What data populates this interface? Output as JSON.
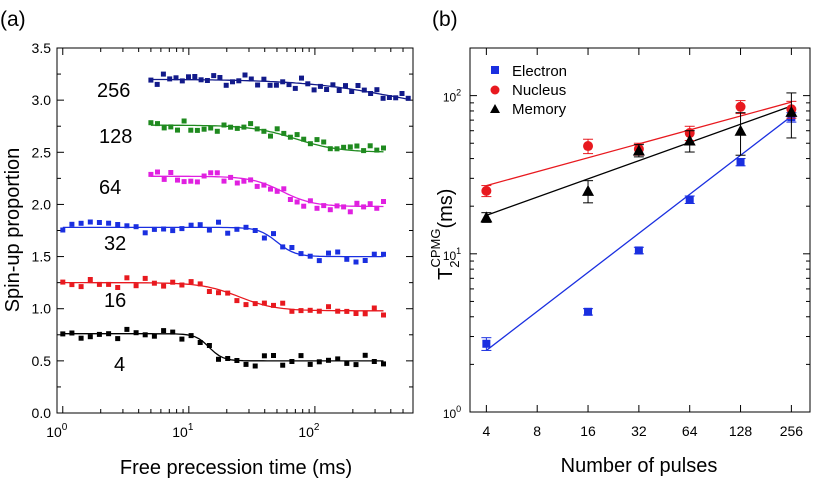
{
  "chart_data": [
    {
      "panel": "(a)",
      "type": "scatter",
      "xlabel": "Free precession time (ms)",
      "ylabel": "Spin-up proportion",
      "xscale": "log",
      "xlim": [
        0.9,
        600
      ],
      "ylim": [
        0.0,
        3.5
      ],
      "x_ticks": [
        {
          "base": "10",
          "exp": "0",
          "v": 1
        },
        {
          "base": "10",
          "exp": "1",
          "v": 10
        },
        {
          "base": "10",
          "exp": "2",
          "v": 100
        }
      ],
      "y_ticks": [
        "0.0",
        "0.5",
        "1.0",
        "1.5",
        "2.0",
        "2.5",
        "3.0",
        "3.5"
      ],
      "series": [
        {
          "name": "4",
          "color": "#000000",
          "x0": 1.0,
          "x1": 350,
          "n": 36,
          "base": 0.5,
          "amp": 0.26,
          "tau": 14.5,
          "steep": 8
        },
        {
          "name": "16",
          "color": "#e8191f",
          "x0": 1.0,
          "x1": 350,
          "n": 36,
          "base": 0.98,
          "amp": 0.27,
          "tau": 25,
          "steep": 3
        },
        {
          "name": "32",
          "color": "#1a2fe0",
          "x0": 1.0,
          "x1": 350,
          "n": 36,
          "base": 1.5,
          "amp": 0.28,
          "tau": 50,
          "steep": 6
        },
        {
          "name": "64",
          "color": "#e020e0",
          "x0": 5.0,
          "x1": 350,
          "n": 36,
          "base": 1.98,
          "amp": 0.29,
          "tau": 55,
          "steep": 3.5
        },
        {
          "name": "128",
          "color": "#1f8a1f",
          "x0": 5.0,
          "x1": 350,
          "n": 36,
          "base": 2.5,
          "amp": 0.26,
          "tau": 70,
          "steep": 2.5
        },
        {
          "name": "256",
          "color": "#121a8a",
          "x0": 5.0,
          "x1": 550,
          "n": 42,
          "base": 2.88,
          "amp": 0.32,
          "tau": 400,
          "steep": 1.2
        }
      ]
    },
    {
      "panel": "(b)",
      "type": "scatter",
      "xlabel": "Number of pulses",
      "ylabel_main": "T",
      "ylabel_sub": "2",
      "ylabel_sup": "CPMG",
      "ylabel_units": "(ms)",
      "xscale": "log2",
      "yscale": "log",
      "xlim": [
        3.2,
        330
      ],
      "ylim": [
        1,
        200
      ],
      "x_ticks": [
        "4",
        "8",
        "16",
        "32",
        "64",
        "128",
        "256"
      ],
      "y_ticks": [
        {
          "base": "10",
          "exp": "0",
          "v": 1
        },
        {
          "base": "10",
          "exp": "1",
          "v": 10
        },
        {
          "base": "10",
          "exp": "2",
          "v": 100
        }
      ],
      "series": [
        {
          "name": "Electron",
          "color": "#1a2fe0",
          "marker": "square",
          "x": [
            4,
            16,
            32,
            64,
            128,
            256
          ],
          "y": [
            2.7,
            4.3,
            10.5,
            22,
            38,
            73
          ],
          "err": [
            0.25,
            0.2,
            0.5,
            1.2,
            2,
            5
          ],
          "fit": [
            [
              4,
              2.45
            ],
            [
              256,
              74
            ]
          ]
        },
        {
          "name": "Nucleus",
          "color": "#e8191f",
          "marker": "circle",
          "x": [
            4,
            16,
            32,
            64,
            128,
            256
          ],
          "y": [
            25,
            48,
            46,
            58,
            85,
            82
          ],
          "err": [
            2,
            5,
            4,
            6,
            8,
            10
          ],
          "fit": [
            [
              4,
              27
            ],
            [
              256,
              91
            ]
          ]
        },
        {
          "name": "Memory",
          "color": "#000000",
          "marker": "triangle",
          "x": [
            4,
            16,
            32,
            64,
            128,
            256
          ],
          "y": [
            17,
            25,
            45,
            52,
            60,
            79
          ],
          "err": [
            1.2,
            4,
            4,
            8,
            18,
            25
          ],
          "fit": [
            [
              4,
              17.5
            ],
            [
              256,
              86
            ]
          ]
        }
      ]
    }
  ]
}
